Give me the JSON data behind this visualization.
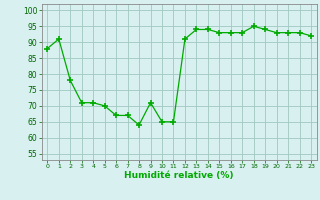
{
  "x": [
    0,
    1,
    2,
    3,
    4,
    5,
    6,
    7,
    8,
    9,
    10,
    11,
    12,
    13,
    14,
    15,
    16,
    17,
    18,
    19,
    20,
    21,
    22,
    23
  ],
  "y": [
    88,
    91,
    78,
    71,
    71,
    70,
    67,
    67,
    64,
    71,
    65,
    65,
    91,
    94,
    94,
    93,
    93,
    93,
    95,
    94,
    93,
    93,
    93,
    92
  ],
  "line_color": "#00aa00",
  "marker": "+",
  "marker_size": 4,
  "bg_color": "#d8f0f0",
  "grid_color": "#a0c8c0",
  "xlabel": "Humidité relative (%)",
  "ylabel_ticks": [
    55,
    60,
    65,
    70,
    75,
    80,
    85,
    90,
    95,
    100
  ],
  "xlim": [
    -0.5,
    23.5
  ],
  "ylim": [
    53,
    102
  ],
  "title": ""
}
